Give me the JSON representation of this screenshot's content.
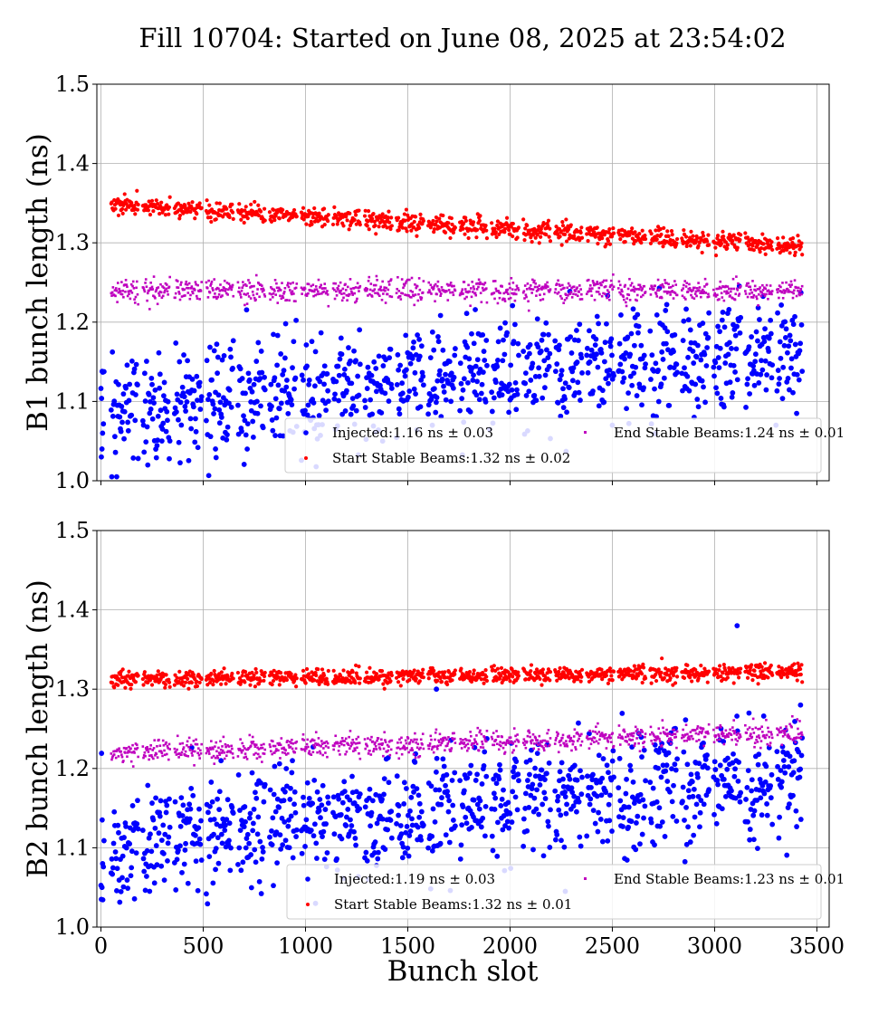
{
  "figure": {
    "title": "Fill 10704: Started on June 08, 2025 at 23:54:02",
    "xlabel": "Bunch slot"
  },
  "colors": {
    "injected": "#0000ff",
    "start_stable": "#ff0000",
    "end_stable": "#bf00bf",
    "grid": "#b0b0b0",
    "legend_border": "#cccccc"
  },
  "chart_data": [
    {
      "type": "scatter",
      "panel": "top",
      "ylabel": "B1 bunch length (ns)",
      "xlim": [
        -20,
        3560
      ],
      "ylim": [
        1.0,
        1.5
      ],
      "xticks": [
        0,
        500,
        1000,
        1500,
        2000,
        2500,
        3000,
        3500
      ],
      "yticks": [
        1.0,
        1.1,
        1.2,
        1.3,
        1.4,
        1.5
      ],
      "ytick_labels": [
        "1.0",
        "1.1",
        "1.2",
        "1.3",
        "1.4",
        "1.5"
      ],
      "grid": true,
      "legend_position": "lower-right",
      "series": [
        {
          "key": "injected",
          "label": "Injected:1.16 ns ± 0.03",
          "trend": [
            [
              0,
              1.1
            ],
            [
              3430,
              1.18
            ]
          ],
          "spread": 0.035,
          "outliers": [
            [
              2,
              1.03
            ],
            [
              5,
              1.04
            ],
            [
              8,
              1.06
            ],
            [
              560,
              1.04
            ],
            [
              1620,
              1.07
            ],
            [
              1900,
              1.065
            ],
            [
              2500,
              1.07
            ],
            [
              3300,
              1.07
            ]
          ]
        },
        {
          "key": "start_stable",
          "label": "Start Stable Beams:1.32 ns ± 0.02",
          "trend": [
            [
              50,
              1.348
            ],
            [
              3430,
              1.295
            ]
          ],
          "spread": 0.006
        },
        {
          "key": "end_stable",
          "label": "End Stable Beams:1.24 ns ± 0.01",
          "trend": [
            [
              50,
              1.24
            ],
            [
              3430,
              1.24
            ]
          ],
          "spread": 0.007
        }
      ],
      "trains": {
        "first": 50,
        "last": 3430,
        "period": 155,
        "length": 135
      }
    },
    {
      "type": "scatter",
      "panel": "bottom",
      "ylabel": "B2 bunch length (ns)",
      "xlim": [
        -20,
        3560
      ],
      "ylim": [
        1.0,
        1.5
      ],
      "xticks": [
        0,
        500,
        1000,
        1500,
        2000,
        2500,
        3000,
        3500
      ],
      "xtick_labels": [
        "0",
        "500",
        "1000",
        "1500",
        "2000",
        "2500",
        "3000",
        "3500"
      ],
      "yticks": [
        1.0,
        1.1,
        1.2,
        1.3,
        1.4,
        1.5
      ],
      "ytick_labels": [
        "1.0",
        "1.1",
        "1.2",
        "1.3",
        "1.4",
        "1.5"
      ],
      "grid": true,
      "legend_position": "lower-right",
      "series": [
        {
          "key": "injected",
          "label": "Injected:1.19 ns ± 0.03",
          "trend": [
            [
              0,
              1.12
            ],
            [
              3430,
              1.2
            ]
          ],
          "spread": 0.035,
          "outliers": [
            [
              2,
              1.035
            ],
            [
              5,
              1.05
            ],
            [
              8,
              1.08
            ],
            [
              3110,
              1.38
            ],
            [
              2270,
              1.045
            ],
            [
              1640,
              1.3
            ],
            [
              3420,
              1.28
            ]
          ]
        },
        {
          "key": "start_stable",
          "label": "Start Stable Beams:1.32 ns ± 0.01",
          "trend": [
            [
              50,
              1.312
            ],
            [
              3430,
              1.322
            ]
          ],
          "spread": 0.005
        },
        {
          "key": "end_stable",
          "label": "End Stable Beams:1.23 ns ± 0.01",
          "trend": [
            [
              50,
              1.22
            ],
            [
              3430,
              1.245
            ]
          ],
          "spread": 0.007
        }
      ],
      "trains": {
        "first": 50,
        "last": 3430,
        "period": 155,
        "length": 135
      }
    }
  ]
}
